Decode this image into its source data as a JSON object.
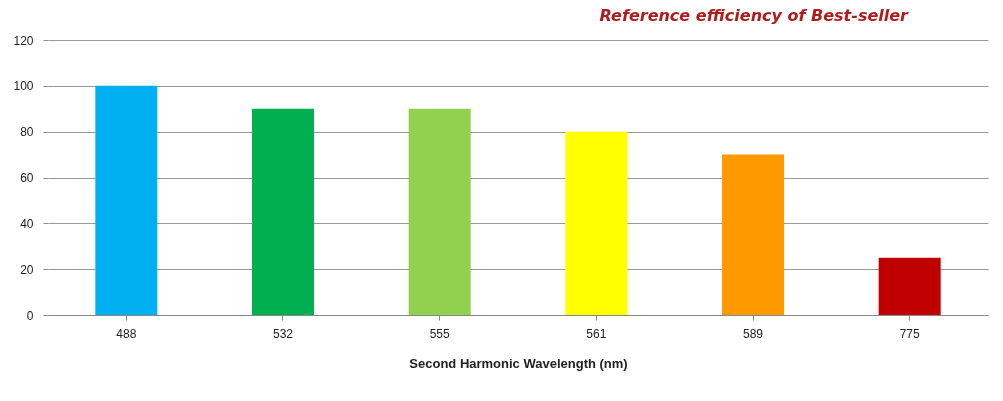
{
  "chart_data": {
    "type": "bar",
    "title": "Reference efficiency of Best-seller",
    "xlabel": "Second Harmonic Wavelength (nm)",
    "categories": [
      "488",
      "532",
      "555",
      "561",
      "589",
      "775"
    ],
    "values": [
      100,
      90,
      90,
      80,
      70,
      25
    ],
    "colors": [
      "#00b0f0",
      "#00b050",
      "#92d050",
      "#ffff00",
      "#ff9900",
      "#c00000"
    ],
    "ylim": [
      0,
      120
    ],
    "yticks": [
      0,
      20,
      40,
      60,
      80,
      100,
      120
    ],
    "grid": "y"
  }
}
